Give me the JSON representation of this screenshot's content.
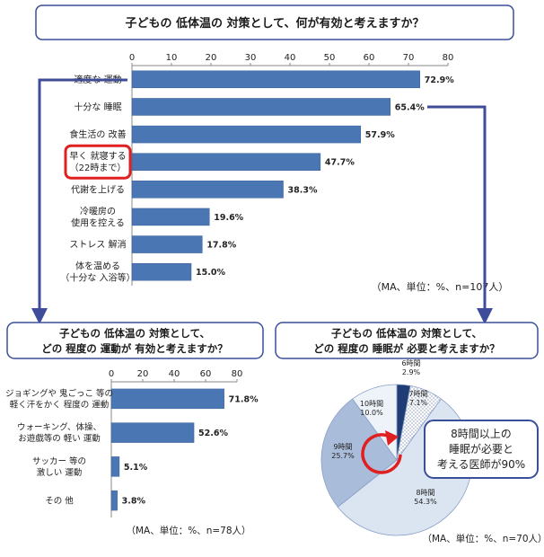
{
  "colors": {
    "bar": "#4a76b4",
    "bar_edge": "#365f98",
    "box_border": "#3a4f9a",
    "arrow": "#3f4c9a",
    "highlight": "#e02020",
    "pie_6h": "#1f3c75",
    "pie_7h": "#dce6f3",
    "pie_8h": "#dbe5f1",
    "pie_9h": "#a9bcd9",
    "pie_10h": "#eef3fa"
  },
  "top": {
    "title": "子どもの 低体温の 対策として、何が有効と考えますか？",
    "note": "（MA、単位：%、n=107人）"
  },
  "bottom_left": {
    "title_line1": "子どもの 低体温の 対策として、",
    "title_line2": "どの 程度の 運動が 有効と考えますか？",
    "note": "（MA、単位：%、n=78人）"
  },
  "bottom_right": {
    "title_line1": "子どもの 低体温の 対策として、",
    "title_line2": "どの 程度の 睡眠が 必要と考えますか？",
    "note": "（MA、単位：%、n=70人）",
    "callout_line1": "8時間以上の",
    "callout_line2": "睡眠が必要と",
    "callout_line3": "考える医師が90%"
  },
  "chart_data": [
    {
      "type": "bar",
      "orientation": "horizontal",
      "title": "子どもの 低体温の 対策として、何が有効と考えますか？",
      "categories": [
        [
          "適度な 運動"
        ],
        [
          "十分な 睡眠"
        ],
        [
          "食生活の 改善"
        ],
        [
          "早く 就寝する",
          "（22時まで）"
        ],
        [
          "代謝を上げる"
        ],
        [
          "冷暖房の",
          "使用を控える"
        ],
        [
          "ストレス 解消"
        ],
        [
          "体を温める",
          "（十分な 入浴等）"
        ]
      ],
      "values": [
        72.9,
        65.4,
        57.9,
        47.7,
        38.3,
        19.6,
        17.8,
        15.0
      ],
      "value_labels": [
        "72.9%",
        "65.4%",
        "57.9%",
        "47.7%",
        "38.3%",
        "19.6%",
        "17.8%",
        "15.0%"
      ],
      "highlighted_index": 3,
      "xlim": [
        0,
        80
      ],
      "ticks": [
        0,
        10,
        20,
        30,
        40,
        50,
        60,
        70,
        80
      ],
      "grid": false
    },
    {
      "type": "bar",
      "orientation": "horizontal",
      "title": "子どもの 低体温の 対策として、どの 程度の 運動が 有効と考えますか？",
      "categories": [
        [
          "ジョギングや 鬼ごっこ 等の",
          "軽く汗をかく 程度の 運動"
        ],
        [
          "ウォーキング、体操、",
          "お遊戯等の 軽い 運動"
        ],
        [
          "サッカー 等の",
          "激しい 運動"
        ],
        [
          "その 他"
        ]
      ],
      "values": [
        71.8,
        52.6,
        5.1,
        3.8
      ],
      "value_labels": [
        "71.8%",
        "52.6%",
        "5.1%",
        "3.8%"
      ],
      "xlim": [
        0,
        80
      ],
      "ticks": [
        0,
        20,
        40,
        60,
        80
      ],
      "grid": false
    },
    {
      "type": "pie",
      "title": "子どもの 低体温の 対策として、どの 程度の 睡眠が 必要と考えますか？",
      "slices": [
        {
          "label": "6時間",
          "value": 2.9,
          "value_label": "2.9%"
        },
        {
          "label": "7時間",
          "value": 7.1,
          "value_label": "7.1%"
        },
        {
          "label": "8時間",
          "value": 54.3,
          "value_label": "54.3%"
        },
        {
          "label": "9時間",
          "value": 25.7,
          "value_label": "25.7%"
        },
        {
          "label": "10時間",
          "value": 10.0,
          "value_label": "10.0%"
        }
      ]
    }
  ]
}
